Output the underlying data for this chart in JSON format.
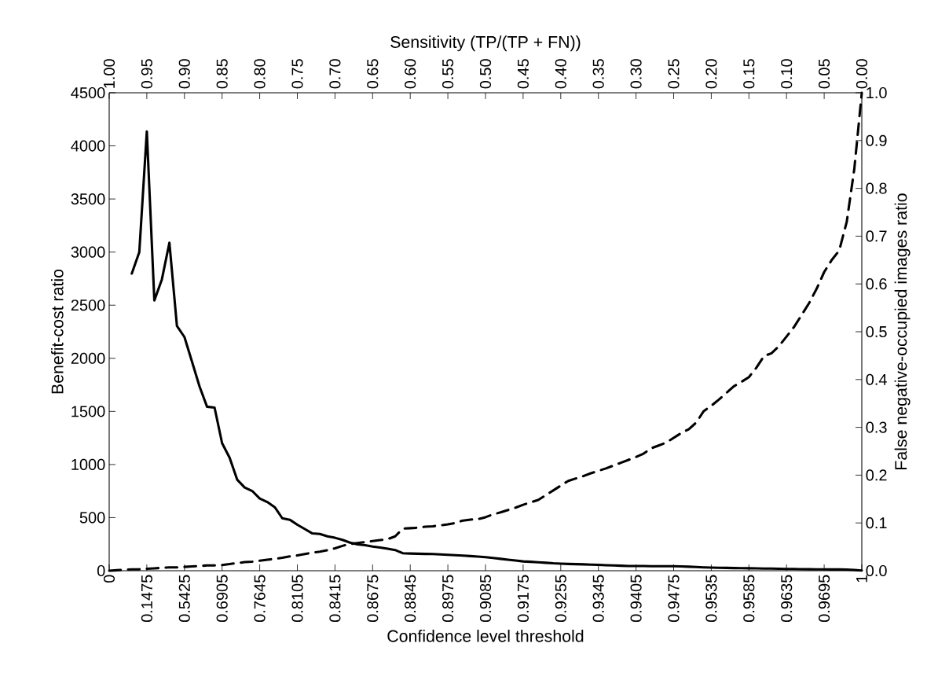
{
  "chart_data": {
    "type": "line",
    "xlabel": "Confidence level threshold",
    "ylabel": "Benefit-cost ratio",
    "y2label": "False negative-occupied images ratio",
    "x2label": "Sensitivity (TP/(TP + FN))",
    "categories": [
      "0",
      null,
      null,
      null,
      null,
      "0.1475",
      null,
      null,
      null,
      null,
      "0.5425",
      null,
      null,
      null,
      null,
      "0.6905",
      null,
      null,
      null,
      null,
      "0.7645",
      null,
      null,
      null,
      null,
      "0.8105",
      null,
      null,
      null,
      null,
      "0.8415",
      null,
      null,
      null,
      null,
      "0.8675",
      null,
      null,
      null,
      null,
      "0.8845",
      null,
      null,
      null,
      null,
      "0.8975",
      null,
      null,
      null,
      null,
      "0.9085",
      null,
      null,
      null,
      null,
      "0.9175",
      null,
      null,
      null,
      null,
      "0.9255",
      null,
      null,
      null,
      null,
      "0.9345",
      null,
      null,
      null,
      null,
      "0.9405",
      null,
      null,
      null,
      null,
      "0.9475",
      null,
      null,
      null,
      null,
      "0.9535",
      null,
      null,
      null,
      null,
      "0.9585",
      null,
      null,
      null,
      null,
      "0.9635",
      null,
      null,
      null,
      null,
      "0.9695",
      null,
      null,
      null,
      null,
      "1"
    ],
    "series": [
      {
        "color": "#000000",
        "line_style": "solid",
        "values": [
          null,
          null,
          null,
          2798,
          3000,
          4136,
          2545,
          2743,
          3088,
          2304,
          2200,
          1969,
          1736,
          1544,
          1536,
          1201,
          1064,
          858,
          784,
          751,
          680,
          647,
          598,
          494,
          480,
          433,
          392,
          351,
          346,
          324,
          310,
          290,
          265,
          248,
          240,
          228,
          218,
          208,
          195,
          165,
          162,
          160,
          158,
          157,
          153,
          150,
          146,
          142,
          138,
          133,
          128,
          120,
          112,
          104,
          96,
          88,
          84,
          80,
          75,
          70,
          67,
          64,
          62,
          60,
          58,
          55,
          52,
          50,
          47,
          45,
          44,
          44,
          43,
          42,
          42,
          42,
          41,
          38,
          35,
          32,
          30,
          28,
          27,
          25,
          24,
          23,
          22,
          21,
          20,
          18,
          17,
          16,
          15,
          14,
          13,
          13,
          12,
          12,
          11,
          8,
          2
        ]
      },
      {
        "color": "#000000",
        "line_style": "dashed",
        "axis": "y2",
        "values": [
          0,
          0.001,
          0.002,
          0.003,
          0.003,
          0.004,
          0.005,
          0.006,
          0.007,
          0.007,
          0.008,
          0.009,
          0.01,
          0.011,
          0.011,
          0.012,
          0.014,
          0.016,
          0.018,
          0.019,
          0.021,
          0.023,
          0.025,
          0.027,
          0.03,
          0.032,
          0.035,
          0.038,
          0.04,
          0.043,
          0.047,
          0.052,
          0.056,
          0.058,
          0.06,
          0.062,
          0.064,
          0.066,
          0.072,
          0.088,
          0.089,
          0.09,
          0.092,
          0.093,
          0.095,
          0.097,
          0.1,
          0.105,
          0.107,
          0.108,
          0.112,
          0.118,
          0.122,
          0.127,
          0.132,
          0.138,
          0.143,
          0.148,
          0.158,
          0.168,
          0.178,
          0.188,
          0.193,
          0.198,
          0.204,
          0.209,
          0.214,
          0.22,
          0.226,
          0.232,
          0.238,
          0.245,
          0.256,
          0.262,
          0.268,
          0.278,
          0.288,
          0.296,
          0.31,
          0.334,
          0.345,
          0.358,
          0.372,
          0.386,
          0.395,
          0.405,
          0.425,
          0.449,
          0.455,
          0.47,
          0.49,
          0.51,
          0.535,
          0.56,
          0.59,
          0.625,
          0.65,
          0.67,
          0.73,
          0.84,
          1.0
        ]
      }
    ],
    "ylim": [
      0,
      4500
    ],
    "yticks": [
      0,
      500,
      1000,
      1500,
      2000,
      2500,
      3000,
      3500,
      4000,
      4500
    ],
    "y2lim": [
      0,
      1
    ],
    "y2ticks": [
      {
        "value": 0,
        "label": "0.0"
      },
      {
        "value": 0.1,
        "label": "0.1"
      },
      {
        "value": 0.2,
        "label": "0.2"
      },
      {
        "value": 0.3,
        "label": "0.3"
      },
      {
        "value": 0.4,
        "label": "0.4"
      },
      {
        "value": 0.5,
        "label": "0.5"
      },
      {
        "value": 0.6,
        "label": "0.6"
      },
      {
        "value": 0.7,
        "label": "0.7"
      },
      {
        "value": 0.8,
        "label": "0.8"
      },
      {
        "value": 0.9,
        "label": "0.9"
      },
      {
        "value": 1,
        "label": "1.0"
      }
    ],
    "x2lim": [
      1,
      0
    ],
    "x2ticks": [
      {
        "value": 1,
        "label": "1.00"
      },
      {
        "value": 0.95,
        "label": "0.95"
      },
      {
        "value": 0.9,
        "label": "0.90"
      },
      {
        "value": 0.85,
        "label": "0.85"
      },
      {
        "value": 0.8,
        "label": "0.80"
      },
      {
        "value": 0.75,
        "label": "0.75"
      },
      {
        "value": 0.7,
        "label": "0.70"
      },
      {
        "value": 0.65,
        "label": "0.65"
      },
      {
        "value": 0.6,
        "label": "0.60"
      },
      {
        "value": 0.55,
        "label": "0.55"
      },
      {
        "value": 0.5,
        "label": "0.50"
      },
      {
        "value": 0.45,
        "label": "0.45"
      },
      {
        "value": 0.4,
        "label": "0.40"
      },
      {
        "value": 0.35,
        "label": "0.35"
      },
      {
        "value": 0.3,
        "label": "0.30"
      },
      {
        "value": 0.25,
        "label": "0.25"
      },
      {
        "value": 0.2,
        "label": "0.20"
      },
      {
        "value": 0.15,
        "label": "0.15"
      },
      {
        "value": 0.1,
        "label": "0.10"
      },
      {
        "value": 0.05,
        "label": "0.05"
      },
      {
        "value": 0,
        "label": "0.00"
      }
    ]
  }
}
